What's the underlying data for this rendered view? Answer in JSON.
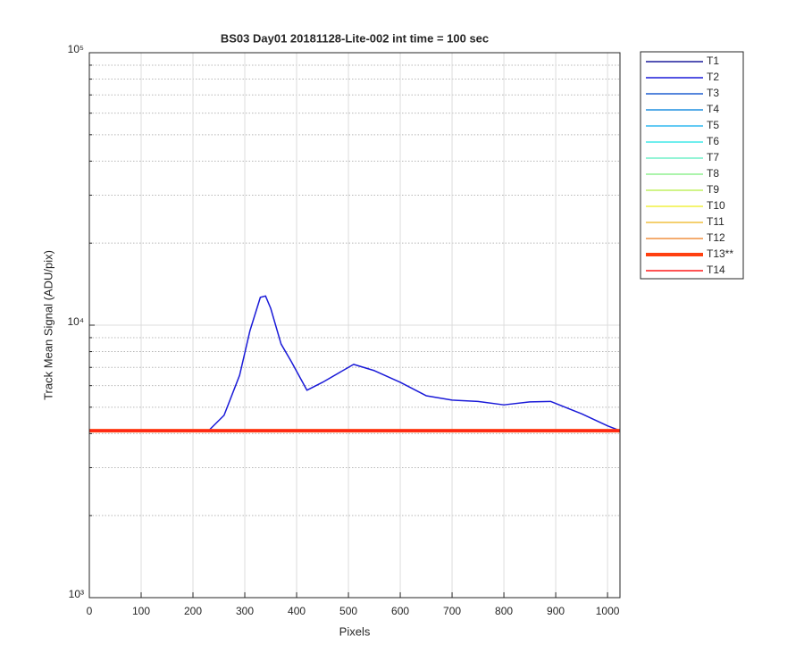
{
  "chart_data": {
    "type": "line",
    "title": "BS03 Day01 20181128-Lite-002 int time = 100 sec",
    "x_label": "Pixels",
    "y_label": "Track Mean Signal (ADU/pix)",
    "x": [
      0,
      100,
      200,
      230,
      260,
      290,
      310,
      330,
      340,
      350,
      370,
      390,
      420,
      450,
      510,
      550,
      600,
      650,
      700,
      750,
      800,
      850,
      890,
      950,
      1000,
      1024
    ],
    "xlim": [
      0,
      1024
    ],
    "xticks": [
      0,
      100,
      200,
      300,
      400,
      500,
      600,
      700,
      800,
      900,
      1000
    ],
    "ylim": [
      1000,
      100000
    ],
    "log_y": true,
    "grid": true,
    "yticks": [
      {
        "value": 1000,
        "label": "10³"
      },
      {
        "value": 10000,
        "label": "10⁴"
      },
      {
        "value": 100000,
        "label": "10⁵"
      }
    ],
    "minor_yticks": [
      2000,
      3000,
      4000,
      5000,
      6000,
      7000,
      8000,
      9000,
      20000,
      30000,
      40000,
      50000,
      60000,
      70000,
      80000,
      90000
    ],
    "legend": "outside-right",
    "series": [
      {
        "name": "T1",
        "color": "#1c1c9c",
        "line_width": 1.5,
        "values": [
          4100,
          4100,
          4100,
          4100,
          4100,
          4100,
          4100,
          4100,
          4100,
          4100,
          4100,
          4100,
          4100,
          4100,
          4100,
          4100,
          4100,
          4100,
          4100,
          4100,
          4100,
          4100,
          4100,
          4100,
          4100,
          4100
        ]
      },
      {
        "name": "T2",
        "color": "#1a1ad8",
        "line_width": 1.5,
        "values": [
          4100,
          4100,
          4100,
          4100,
          4670,
          6550,
          9550,
          12650,
          12800,
          11530,
          8530,
          7340,
          5770,
          6170,
          7180,
          6810,
          6170,
          5510,
          5310,
          5250,
          5100,
          5230,
          5250,
          4730,
          4270,
          4100
        ]
      },
      {
        "name": "T3",
        "color": "#1f5fd0",
        "line_width": 1.5,
        "values": [
          4100,
          4100,
          4100,
          4100,
          4100,
          4100,
          4100,
          4100,
          4100,
          4100,
          4100,
          4100,
          4100,
          4100,
          4100,
          4100,
          4100,
          4100,
          4100,
          4100,
          4100,
          4100,
          4100,
          4100,
          4100,
          4100
        ]
      },
      {
        "name": "T4",
        "color": "#2090e0",
        "line_width": 1.5,
        "values": [
          4100,
          4100,
          4100,
          4100,
          4100,
          4100,
          4100,
          4100,
          4100,
          4100,
          4100,
          4100,
          4100,
          4100,
          4100,
          4100,
          4100,
          4100,
          4100,
          4100,
          4100,
          4100,
          4100,
          4100,
          4100,
          4100
        ]
      },
      {
        "name": "T5",
        "color": "#30b8f0",
        "line_width": 1.5,
        "values": [
          4100,
          4100,
          4100,
          4100,
          4100,
          4100,
          4100,
          4100,
          4100,
          4100,
          4100,
          4100,
          4100,
          4100,
          4100,
          4100,
          4100,
          4100,
          4100,
          4100,
          4100,
          4100,
          4100,
          4100,
          4100,
          4100
        ]
      },
      {
        "name": "T6",
        "color": "#40e8e8",
        "line_width": 1.5,
        "values": [
          4100,
          4100,
          4100,
          4100,
          4100,
          4100,
          4100,
          4100,
          4100,
          4100,
          4100,
          4100,
          4100,
          4100,
          4100,
          4100,
          4100,
          4100,
          4100,
          4100,
          4100,
          4100,
          4100,
          4100,
          4100,
          4100
        ]
      },
      {
        "name": "T7",
        "color": "#70f0c8",
        "line_width": 1.5,
        "values": [
          4100,
          4100,
          4100,
          4100,
          4100,
          4100,
          4100,
          4100,
          4100,
          4100,
          4100,
          4100,
          4100,
          4100,
          4100,
          4100,
          4100,
          4100,
          4100,
          4100,
          4100,
          4100,
          4100,
          4100,
          4100,
          4100
        ]
      },
      {
        "name": "T8",
        "color": "#90f090",
        "line_width": 1.5,
        "values": [
          4100,
          4100,
          4100,
          4100,
          4100,
          4100,
          4100,
          4100,
          4100,
          4100,
          4100,
          4100,
          4100,
          4100,
          4100,
          4100,
          4100,
          4100,
          4100,
          4100,
          4100,
          4100,
          4100,
          4100,
          4100,
          4100
        ]
      },
      {
        "name": "T9",
        "color": "#c0f060",
        "line_width": 1.5,
        "values": [
          4100,
          4100,
          4100,
          4100,
          4100,
          4100,
          4100,
          4100,
          4100,
          4100,
          4100,
          4100,
          4100,
          4100,
          4100,
          4100,
          4100,
          4100,
          4100,
          4100,
          4100,
          4100,
          4100,
          4100,
          4100,
          4100
        ]
      },
      {
        "name": "T10",
        "color": "#f0f040",
        "line_width": 1.5,
        "values": [
          4100,
          4100,
          4100,
          4100,
          4100,
          4100,
          4100,
          4100,
          4100,
          4100,
          4100,
          4100,
          4100,
          4100,
          4100,
          4100,
          4100,
          4100,
          4100,
          4100,
          4100,
          4100,
          4100,
          4100,
          4100,
          4100
        ]
      },
      {
        "name": "T11",
        "color": "#f0c040",
        "line_width": 1.5,
        "values": [
          4100,
          4100,
          4100,
          4100,
          4100,
          4100,
          4100,
          4100,
          4100,
          4100,
          4100,
          4100,
          4100,
          4100,
          4100,
          4100,
          4100,
          4100,
          4100,
          4100,
          4100,
          4100,
          4100,
          4100,
          4100,
          4100
        ]
      },
      {
        "name": "T12",
        "color": "#f09040",
        "line_width": 1.5,
        "values": [
          4100,
          4100,
          4100,
          4100,
          4100,
          4100,
          4100,
          4100,
          4100,
          4100,
          4100,
          4100,
          4100,
          4100,
          4100,
          4100,
          4100,
          4100,
          4100,
          4100,
          4100,
          4100,
          4100,
          4100,
          4100,
          4100
        ]
      },
      {
        "name": "T13**",
        "color": "#ff4010",
        "line_width": 4,
        "values": [
          4100,
          4100,
          4100,
          4100,
          4100,
          4100,
          4100,
          4100,
          4100,
          4100,
          4100,
          4100,
          4100,
          4100,
          4100,
          4100,
          4100,
          4100,
          4100,
          4100,
          4100,
          4100,
          4100,
          4100,
          4100,
          4100
        ]
      },
      {
        "name": "T14",
        "color": "#ff1a1a",
        "line_width": 1.5,
        "values": [
          4100,
          4100,
          4100,
          4100,
          4100,
          4100,
          4100,
          4100,
          4100,
          4100,
          4100,
          4100,
          4100,
          4100,
          4100,
          4100,
          4100,
          4100,
          4100,
          4100,
          4100,
          4100,
          4100,
          4100,
          4100,
          4100
        ]
      }
    ]
  }
}
